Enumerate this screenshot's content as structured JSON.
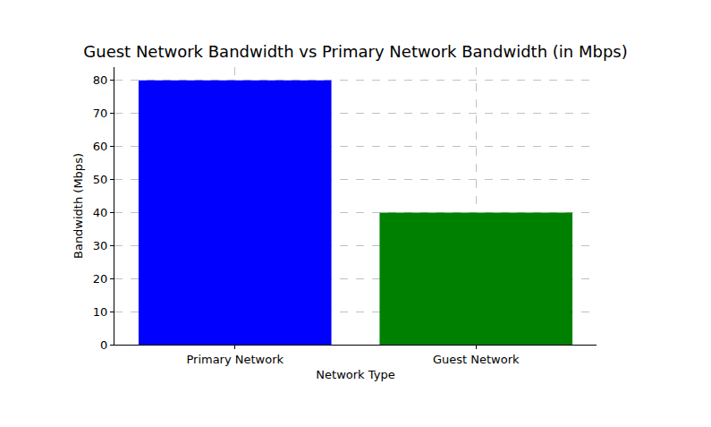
{
  "chart_data": {
    "type": "bar",
    "title": "Guest Network Bandwidth vs Primary Network Bandwidth (in Mbps)",
    "x_label": "Network Type",
    "y_label": "Bandwidth (Mbps)",
    "categories": [
      "Primary Network",
      "Guest Network"
    ],
    "values": [
      80,
      40
    ],
    "colors": [
      "#0000ff",
      "#008000"
    ],
    "ylim": [
      0,
      84
    ],
    "yticks": [
      0,
      10,
      20,
      30,
      40,
      50,
      60,
      70,
      80
    ],
    "grid": true
  }
}
